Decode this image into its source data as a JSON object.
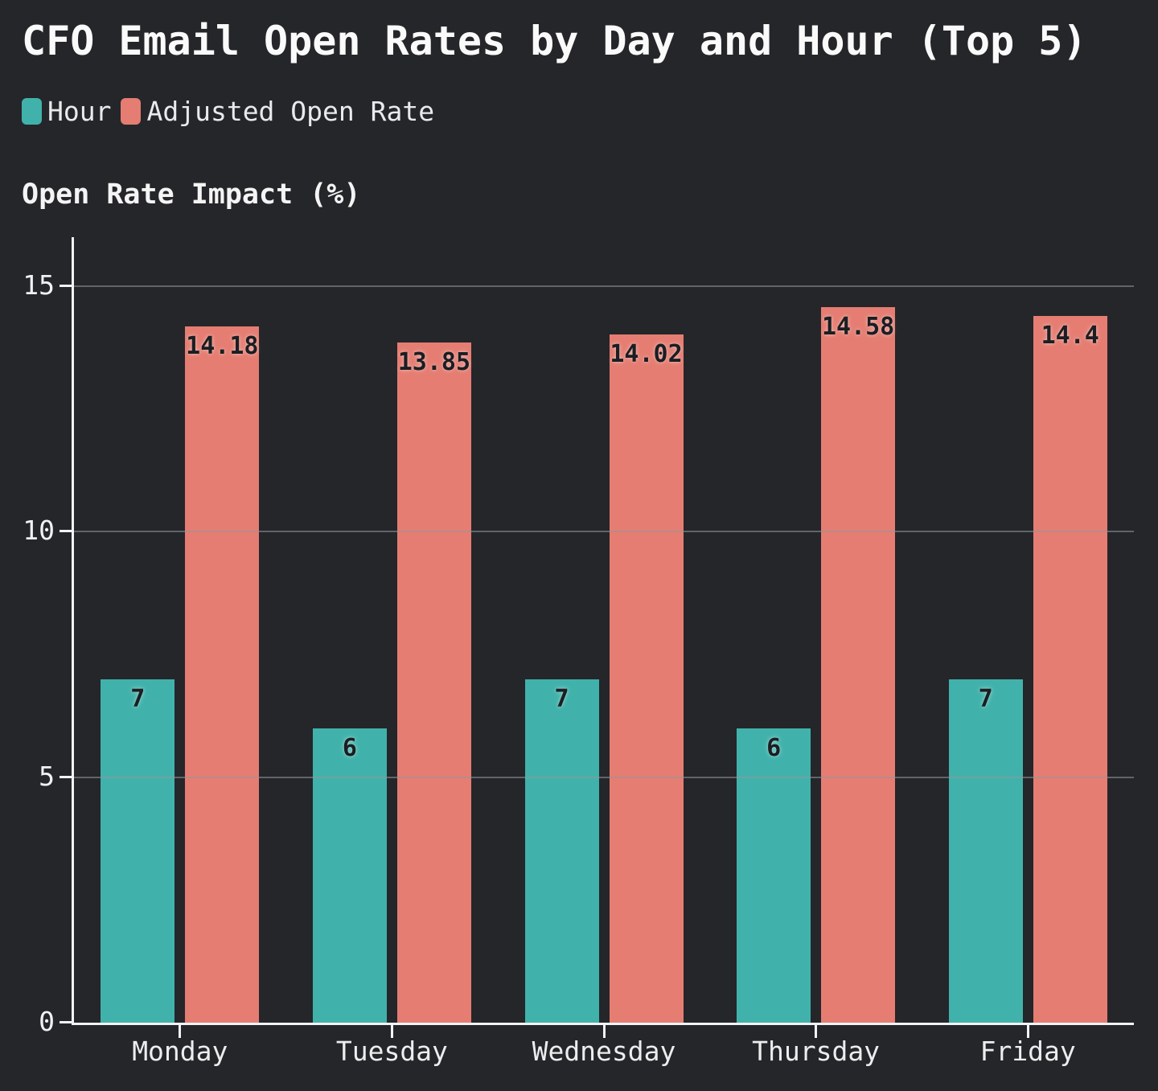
{
  "chart_data": {
    "type": "bar",
    "title": "CFO Email Open Rates by Day and Hour (Top 5)",
    "ylabel": "Open Rate Impact (%)",
    "xlabel": "",
    "categories": [
      "Monday",
      "Tuesday",
      "Wednesday",
      "Thursday",
      "Friday"
    ],
    "series": [
      {
        "name": "Hour",
        "color": "#41b2ab",
        "values": [
          7,
          6,
          7,
          6,
          7
        ]
      },
      {
        "name": "Adjusted Open Rate",
        "color": "#e57d72",
        "values": [
          14.18,
          13.85,
          14.02,
          14.58,
          14.4
        ]
      }
    ],
    "yticks": [
      0,
      5,
      10,
      15
    ],
    "ylim": [
      0,
      16
    ],
    "grid": true,
    "gridlines_over_bars": true,
    "legend_position": "top-left",
    "bar_labels": true
  },
  "colors": {
    "background": "#24262a",
    "axis": "#f2f3f4",
    "gridline": "#94979c",
    "title_text": "#fafafa",
    "tick_text": "#f0f1f2",
    "bar_label_text": "#1b1e22"
  }
}
